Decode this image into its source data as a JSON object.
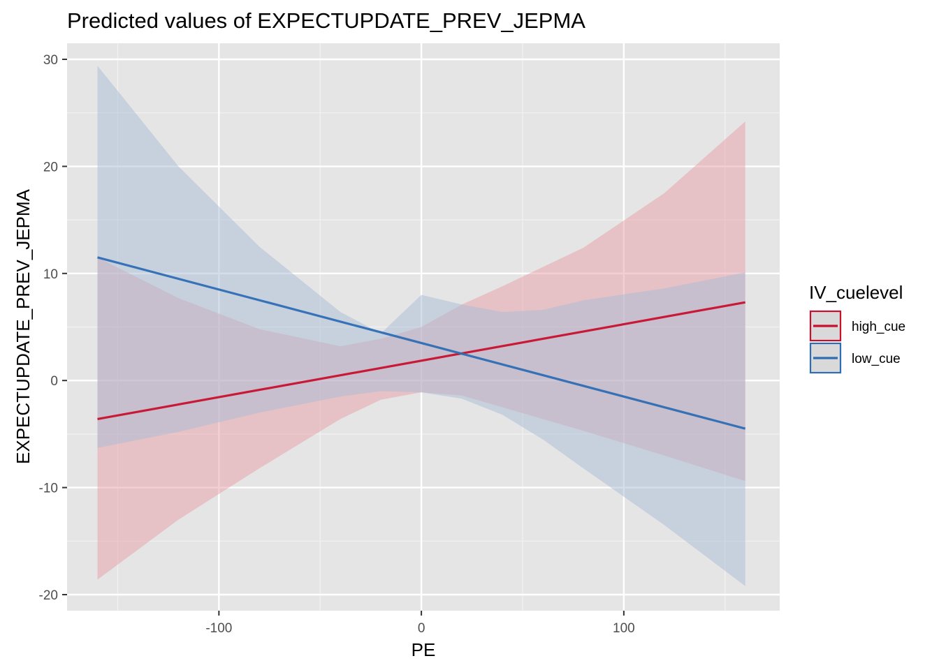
{
  "chart_data": {
    "type": "line",
    "title": "Predicted values of EXPECTUPDATE_PREV_JEPMA",
    "xlabel": "PE",
    "ylabel": "EXPECTUPDATE_PREV_JEPMA",
    "xlim": [
      -175,
      177
    ],
    "ylim": [
      -21.5,
      31.5
    ],
    "x_ticks": [
      -100,
      0,
      100
    ],
    "x_tick_labels": [
      "-100",
      "0",
      "100"
    ],
    "y_ticks": [
      -20,
      -10,
      0,
      10,
      20,
      30
    ],
    "y_tick_labels": [
      "-20",
      "-10",
      "0",
      "10",
      "20",
      "30"
    ],
    "grid": true,
    "legend": {
      "title": "IV_cuelevel",
      "position": "right"
    },
    "series": [
      {
        "name": "high_cue",
        "color": "#c8102e",
        "fill_color": "#e8a0aa",
        "line": [
          [
            -160,
            -3.6
          ],
          [
            160,
            7.3
          ]
        ],
        "ci_x": [
          -160,
          -120,
          -80,
          -40,
          -20,
          0,
          20,
          40,
          80,
          120,
          160
        ],
        "ci_low": [
          -18.6,
          -13.0,
          -8.2,
          -3.6,
          -1.8,
          -1.1,
          -1.4,
          -2.5,
          -4.7,
          -7.0,
          -9.4
        ],
        "ci_high": [
          11.5,
          7.7,
          4.8,
          3.2,
          3.9,
          5.0,
          7.1,
          8.8,
          12.4,
          17.5,
          24.2
        ]
      },
      {
        "name": "low_cue",
        "color": "#2e6db4",
        "fill_color": "#aabcd6",
        "line": [
          [
            -160,
            11.5
          ],
          [
            160,
            -4.5
          ]
        ],
        "ci_x": [
          -160,
          -120,
          -80,
          -40,
          -20,
          0,
          20,
          40,
          60,
          80,
          120,
          160
        ],
        "ci_low": [
          -6.3,
          -4.8,
          -3.0,
          -1.5,
          -1.0,
          -1.1,
          -1.7,
          -3.2,
          -5.5,
          -8.2,
          -13.5,
          -19.2
        ],
        "ci_high": [
          29.4,
          20.0,
          12.5,
          6.4,
          4.4,
          8.0,
          7.1,
          6.4,
          6.6,
          7.5,
          8.6,
          10.1
        ]
      }
    ]
  }
}
